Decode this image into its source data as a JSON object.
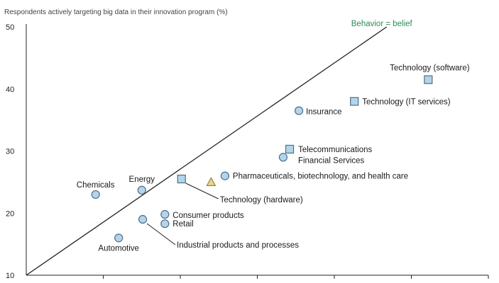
{
  "chart_data": {
    "type": "scatter",
    "ylabel": "Respondents actively targeting big data in their innovation program (%)",
    "ylim": [
      10,
      50
    ],
    "yticks": [
      10,
      20,
      30,
      40,
      50
    ],
    "xlim": [
      0,
      50
    ],
    "reference_line": {
      "label": "Behavior = belief",
      "from": [
        0,
        10
      ],
      "to": [
        39,
        50
      ],
      "label_color": "#2e8b57"
    },
    "colors": {
      "marker_fill": "#b3d4ea",
      "marker_stroke": "#4d6f86",
      "triangle_fill": "#f0d38c",
      "triangle_stroke": "#9c8444",
      "line": "#222222"
    },
    "points": [
      {
        "label": "Chemicals",
        "x": 7.5,
        "y": 23,
        "marker": "circle"
      },
      {
        "label": "Energy",
        "x": 12.5,
        "y": 23.7,
        "marker": "circle"
      },
      {
        "label": "Automotive",
        "x": 10,
        "y": 16,
        "marker": "circle"
      },
      {
        "label": "Industrial products and processes",
        "x": 12.6,
        "y": 19,
        "marker": "circle"
      },
      {
        "label": "Consumer products",
        "x": 15,
        "y": 19.8,
        "marker": "circle"
      },
      {
        "label": "Retail",
        "x": 15,
        "y": 18.3,
        "marker": "circle"
      },
      {
        "label": "Technology (hardware)",
        "x": 16.8,
        "y": 25.5,
        "marker": "square"
      },
      {
        "label": "",
        "x": 20,
        "y": 25,
        "marker": "triangle"
      },
      {
        "label": "Pharmaceuticals, biotechnology, and health care",
        "x": 21.5,
        "y": 26,
        "marker": "circle"
      },
      {
        "label": "Financial Services",
        "x": 27.8,
        "y": 29,
        "marker": "circle"
      },
      {
        "label": "Telecommunications",
        "x": 28.5,
        "y": 30.3,
        "marker": "square"
      },
      {
        "label": "Insurance",
        "x": 29.5,
        "y": 36.5,
        "marker": "circle"
      },
      {
        "label": "Technology (IT services)",
        "x": 35.5,
        "y": 38,
        "marker": "square"
      },
      {
        "label": "Technology (software)",
        "x": 43.5,
        "y": 41.5,
        "marker": "square"
      }
    ]
  }
}
